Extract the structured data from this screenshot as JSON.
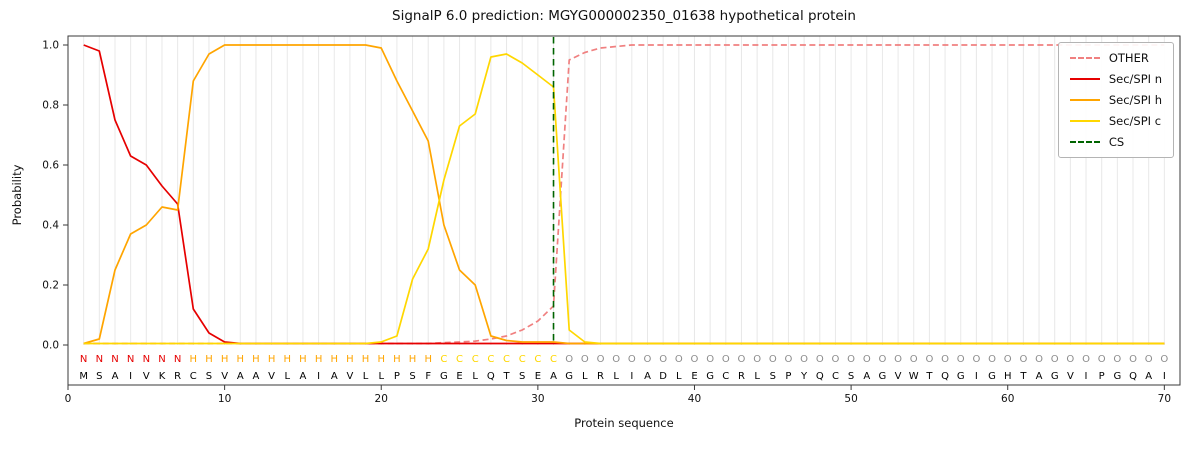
{
  "chart_data": {
    "type": "line",
    "title": "SignalP 6.0 prediction: MGYG000002350_01638 hypothetical protein",
    "xlabel": "Protein sequence",
    "ylabel": "Probability",
    "xlim": [
      0,
      71
    ],
    "ylim": [
      0.0,
      1.05
    ],
    "xticks": [
      0,
      10,
      20,
      30,
      40,
      50,
      60,
      70
    ],
    "yticks": [
      0.0,
      0.2,
      0.4,
      0.6,
      0.8,
      1.0
    ],
    "grid": "vertical gridline at each residue position",
    "legend_position": "upper right",
    "x_range": [
      1,
      70
    ],
    "series": [
      {
        "name": "OTHER",
        "color": "#f08080",
        "dashed": true,
        "values": [
          0.005,
          0.005,
          0.005,
          0.005,
          0.005,
          0.005,
          0.005,
          0.005,
          0.005,
          0.005,
          0.005,
          0.005,
          0.005,
          0.005,
          0.005,
          0.005,
          0.005,
          0.005,
          0.005,
          0.005,
          0.005,
          0.005,
          0.005,
          0.008,
          0.01,
          0.013,
          0.02,
          0.03,
          0.05,
          0.08,
          0.13,
          0.95,
          0.975,
          0.99,
          0.995,
          1.0,
          1.0,
          1.0,
          1.0,
          1.0,
          1.0,
          1.0,
          1.0,
          1.0,
          1.0,
          1.0,
          1.0,
          1.0,
          1.0,
          1.0,
          1.0,
          1.0,
          1.0,
          1.0,
          1.0,
          1.0,
          1.0,
          1.0,
          1.0,
          1.0,
          1.0,
          1.0,
          1.0,
          1.0,
          1.0,
          1.0,
          1.0,
          1.0,
          1.0,
          1.0
        ]
      },
      {
        "name": "Sec/SPI n",
        "color": "#e60000",
        "dashed": false,
        "values": [
          1.0,
          0.98,
          0.75,
          0.63,
          0.6,
          0.53,
          0.47,
          0.12,
          0.04,
          0.01,
          0.005,
          0.005,
          0.005,
          0.005,
          0.005,
          0.005,
          0.005,
          0.005,
          0.005,
          0.005,
          0.005,
          0.005,
          0.005,
          0.005,
          0.005,
          0.005,
          0.005,
          0.005,
          0.005,
          0.005,
          0.005,
          0.005,
          0.005,
          0.005,
          0.005,
          0.005,
          0.005,
          0.005,
          0.005,
          0.005,
          0.005,
          0.005,
          0.005,
          0.005,
          0.005,
          0.005,
          0.005,
          0.005,
          0.005,
          0.005,
          0.005,
          0.005,
          0.005,
          0.005,
          0.005,
          0.005,
          0.005,
          0.005,
          0.005,
          0.005,
          0.005,
          0.005,
          0.005,
          0.005,
          0.005,
          0.005,
          0.005,
          0.005,
          0.005,
          0.005
        ]
      },
      {
        "name": "Sec/SPI h",
        "color": "#ffa500",
        "dashed": false,
        "values": [
          0.005,
          0.02,
          0.25,
          0.37,
          0.4,
          0.46,
          0.45,
          0.88,
          0.97,
          1.0,
          1.0,
          1.0,
          1.0,
          1.0,
          1.0,
          1.0,
          1.0,
          1.0,
          1.0,
          0.99,
          0.88,
          0.78,
          0.68,
          0.4,
          0.25,
          0.2,
          0.03,
          0.015,
          0.01,
          0.01,
          0.01,
          0.005,
          0.005,
          0.005,
          0.005,
          0.005,
          0.005,
          0.005,
          0.005,
          0.005,
          0.005,
          0.005,
          0.005,
          0.005,
          0.005,
          0.005,
          0.005,
          0.005,
          0.005,
          0.005,
          0.005,
          0.005,
          0.005,
          0.005,
          0.005,
          0.005,
          0.005,
          0.005,
          0.005,
          0.005,
          0.005,
          0.005,
          0.005,
          0.005,
          0.005,
          0.005,
          0.005,
          0.005,
          0.005,
          0.005
        ]
      },
      {
        "name": "Sec/SPI c",
        "color": "#ffd700",
        "dashed": false,
        "values": [
          0.005,
          0.005,
          0.005,
          0.005,
          0.005,
          0.005,
          0.005,
          0.005,
          0.005,
          0.005,
          0.005,
          0.005,
          0.005,
          0.005,
          0.005,
          0.005,
          0.005,
          0.005,
          0.005,
          0.01,
          0.03,
          0.22,
          0.32,
          0.55,
          0.73,
          0.77,
          0.96,
          0.97,
          0.94,
          0.9,
          0.86,
          0.05,
          0.01,
          0.005,
          0.005,
          0.005,
          0.005,
          0.005,
          0.005,
          0.005,
          0.005,
          0.005,
          0.005,
          0.005,
          0.005,
          0.005,
          0.005,
          0.005,
          0.005,
          0.005,
          0.005,
          0.005,
          0.005,
          0.005,
          0.005,
          0.005,
          0.005,
          0.005,
          0.005,
          0.005,
          0.005,
          0.005,
          0.005,
          0.005,
          0.005,
          0.005,
          0.005,
          0.005,
          0.005,
          0.005
        ]
      }
    ],
    "cs_line": {
      "name": "CS",
      "x": 31,
      "color": "#006400",
      "dashed": true
    },
    "sequence": "MSAIVKRCSVAAVLAIAVLLPSFGELQTSEAGLRLIADLEGCRLSPYQCSAGVWTQGIGHTAGVIPGQAI",
    "region_labels": "NNNNNNNHHHHHHHHHHHHHHHHCCCCCCCCOOOOOOOOOOOOOOOOOOOOOOOOOOOOOOOOOOOOOOO",
    "region_colors": {
      "N": "#e60000",
      "H": "#ffa500",
      "C": "#ffd700",
      "O": "#8c8c8c"
    },
    "axis_color": "#3a3a3a",
    "grid_color": "#e8e8e8",
    "text_color": "#111111"
  }
}
